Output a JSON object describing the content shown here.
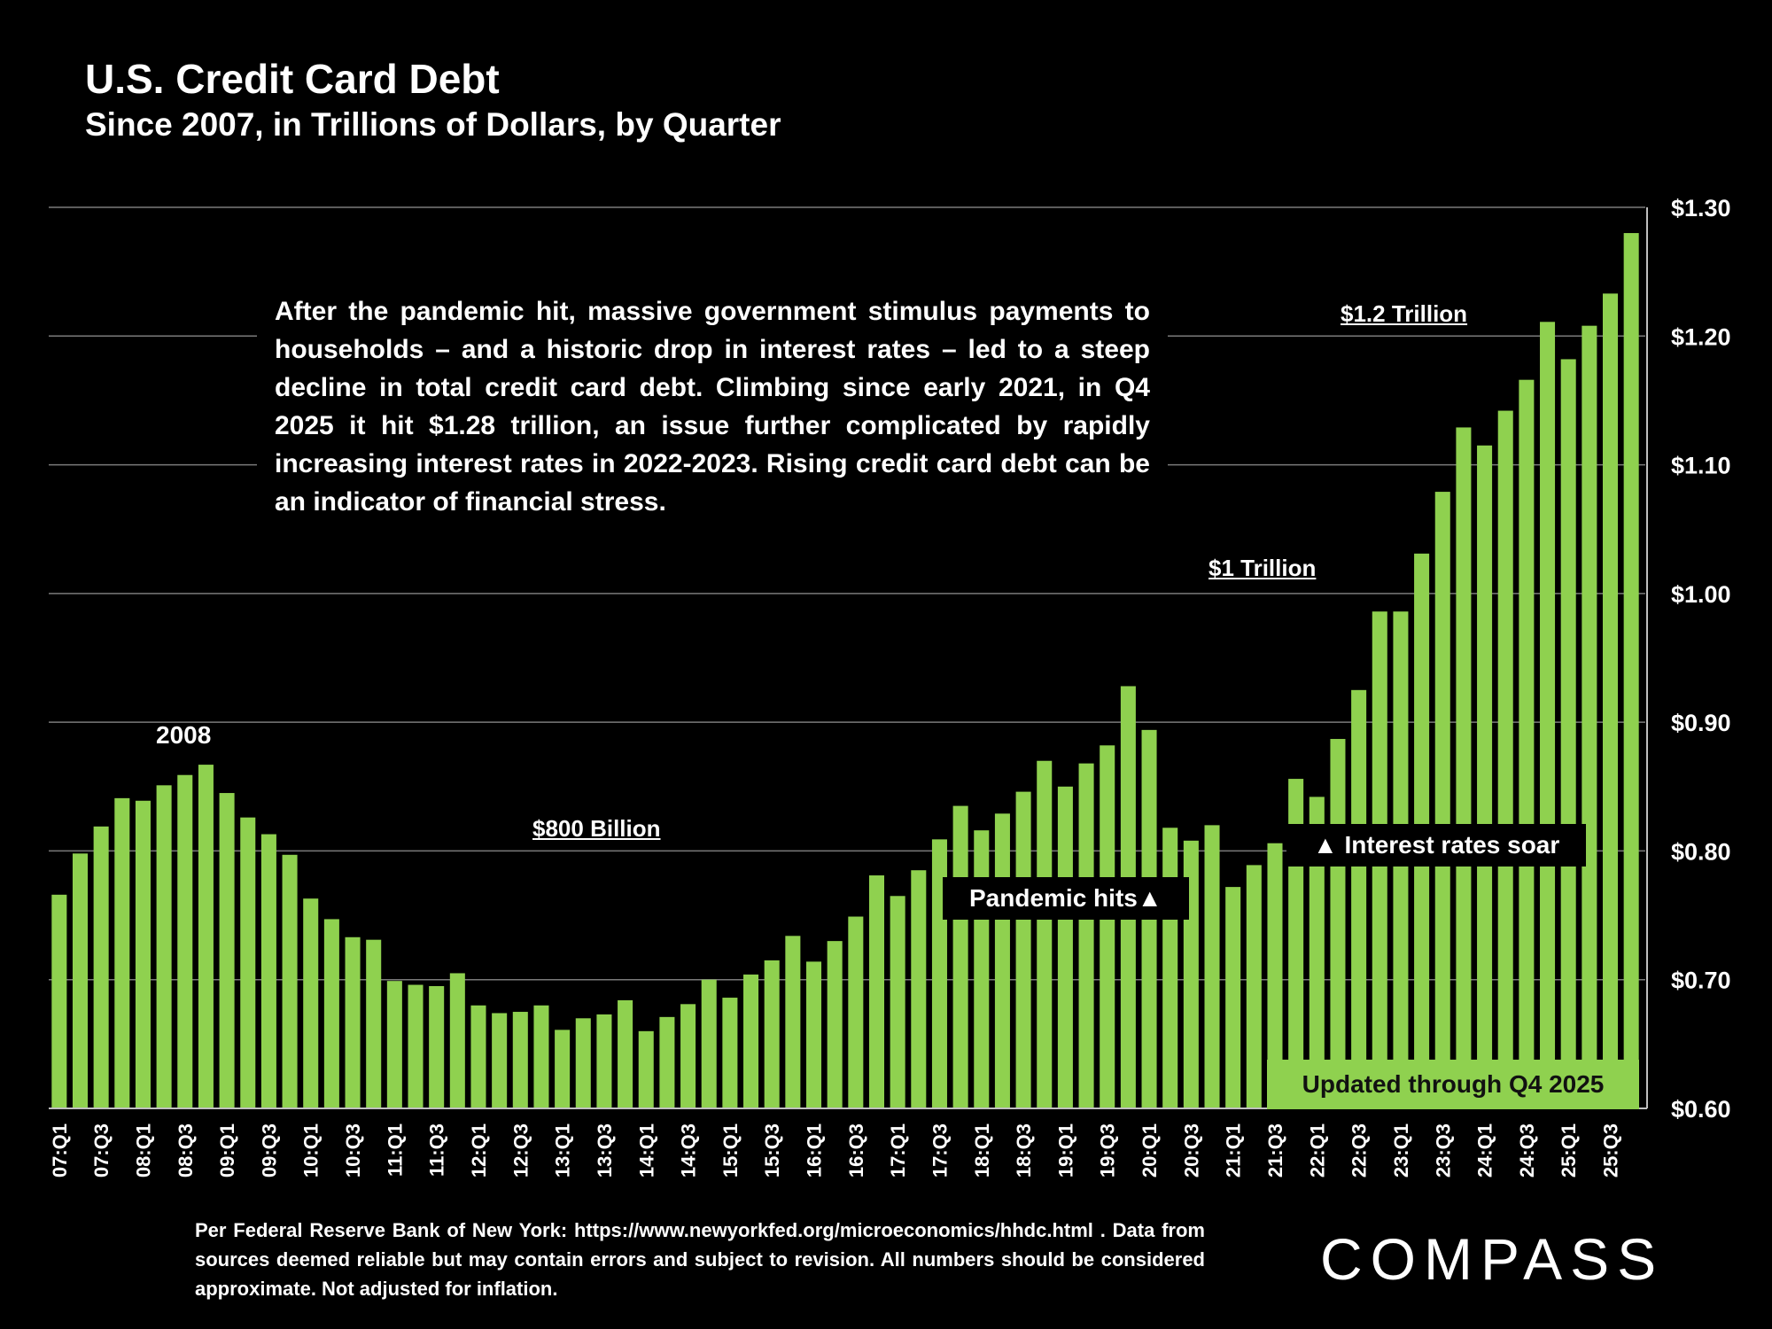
{
  "chart_data": {
    "type": "bar",
    "title": "U.S. Credit Card Debt",
    "subtitle": "Since 2007, in Trillions of Dollars, by Quarter",
    "categories": [
      "07:Q1",
      "07:Q2",
      "07:Q3",
      "07:Q4",
      "08:Q1",
      "08:Q2",
      "08:Q3",
      "08:Q4",
      "09:Q1",
      "09:Q2",
      "09:Q3",
      "09:Q4",
      "10:Q1",
      "10:Q2",
      "10:Q3",
      "10:Q4",
      "11:Q1",
      "11:Q2",
      "11:Q3",
      "11:Q4",
      "12:Q1",
      "12:Q2",
      "12:Q3",
      "12:Q4",
      "13:Q1",
      "13:Q2",
      "13:Q3",
      "13:Q4",
      "14:Q1",
      "14:Q2",
      "14:Q3",
      "14:Q4",
      "15:Q1",
      "15:Q2",
      "15:Q3",
      "15:Q4",
      "16:Q1",
      "16:Q2",
      "16:Q3",
      "16:Q4",
      "17:Q1",
      "17:Q2",
      "17:Q3",
      "17:Q4",
      "18:Q1",
      "18:Q2",
      "18:Q3",
      "18:Q4",
      "19:Q1",
      "19:Q2",
      "19:Q3",
      "19:Q4",
      "20:Q1",
      "20:Q2",
      "20:Q3",
      "20:Q4",
      "21:Q1",
      "21:Q2",
      "21:Q3",
      "21:Q4",
      "22:Q1",
      "22:Q2",
      "22:Q3",
      "22:Q4",
      "23:Q1",
      "23:Q2",
      "23:Q3",
      "23:Q4",
      "24:Q1",
      "24:Q2",
      "24:Q3",
      "24:Q4",
      "25:Q1",
      "25:Q2",
      "25:Q3",
      "25:Q4"
    ],
    "values": [
      0.766,
      0.798,
      0.819,
      0.841,
      0.839,
      0.851,
      0.859,
      0.867,
      0.845,
      0.826,
      0.813,
      0.797,
      0.763,
      0.747,
      0.733,
      0.731,
      0.699,
      0.696,
      0.695,
      0.705,
      0.68,
      0.674,
      0.675,
      0.68,
      0.661,
      0.67,
      0.673,
      0.684,
      0.66,
      0.671,
      0.681,
      0.7,
      0.686,
      0.704,
      0.715,
      0.734,
      0.714,
      0.73,
      0.749,
      0.781,
      0.765,
      0.785,
      0.809,
      0.835,
      0.816,
      0.829,
      0.846,
      0.87,
      0.85,
      0.868,
      0.882,
      0.928,
      0.894,
      0.818,
      0.808,
      0.82,
      0.772,
      0.789,
      0.806,
      0.856,
      0.842,
      0.887,
      0.925,
      0.986,
      0.986,
      1.031,
      1.079,
      1.129,
      1.115,
      1.142,
      1.166,
      1.211,
      1.182,
      1.208,
      1.233,
      1.28
    ],
    "ylim": [
      0.6,
      1.3
    ],
    "yticks": [
      "$0.60",
      "$0.70",
      "$0.80",
      "$0.90",
      "$1.00",
      "$1.10",
      "$1.20",
      "$1.30"
    ],
    "xlabel": "",
    "ylabel": "",
    "grid": true,
    "bar_color": "#8fd14f",
    "background": "#000000"
  },
  "annotations": {
    "callout": "After the pandemic hit, massive government stimulus payments to households – and a historic drop in interest rates – led to a steep decline in total credit card debt. Climbing since early 2021, in Q4 2025 it hit $1.28 trillion, an issue further complicated by rapidly increasing interest rates in 2022-2023. Rising credit card debt can be an indicator of financial stress.",
    "label_2008": "2008",
    "label_800b": "$800 Billion",
    "label_1t": "$1 Trillion",
    "label_12t": "$1.2 Trillion",
    "pandemic": "Pandemic hits▲",
    "rates": "▲ Interest rates soar",
    "updated": "Updated through Q4 2025"
  },
  "footer": {
    "source": "Per Federal Reserve Bank of New York: https://www.newyorkfed.org/microeconomics/hhdc.html . Data from sources deemed reliable but may contain errors and subject to revision. All numbers should be considered approximate. Not adjusted for inflation.",
    "logo": "COMPASS"
  }
}
